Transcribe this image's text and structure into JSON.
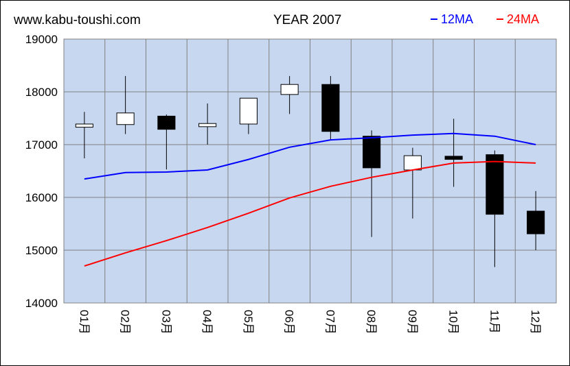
{
  "header": {
    "site": "www.kabu-toushi.com",
    "title": "YEAR 2007"
  },
  "chart_data": {
    "type": "candlestick",
    "title": "YEAR 2007",
    "ylim": [
      14000,
      19000
    ],
    "yticks": [
      14000,
      15000,
      16000,
      17000,
      18000,
      19000
    ],
    "grid": true,
    "legend_position": "top-right",
    "categories": [
      "01月",
      "02月",
      "03月",
      "04月",
      "05月",
      "06月",
      "07月",
      "08月",
      "09月",
      "10月",
      "11月",
      "12月"
    ],
    "candles": [
      {
        "open": 17330,
        "close": 17390,
        "high": 17620,
        "low": 16740
      },
      {
        "open": 17380,
        "close": 17600,
        "high": 18300,
        "low": 17200
      },
      {
        "open": 17540,
        "close": 17290,
        "high": 17570,
        "low": 16530
      },
      {
        "open": 17340,
        "close": 17400,
        "high": 17780,
        "low": 17000
      },
      {
        "open": 17390,
        "close": 17880,
        "high": 17880,
        "low": 17200
      },
      {
        "open": 17950,
        "close": 18140,
        "high": 18300,
        "low": 17580
      },
      {
        "open": 18140,
        "close": 17250,
        "high": 18300,
        "low": 17080
      },
      {
        "open": 17160,
        "close": 16560,
        "high": 17270,
        "low": 15250
      },
      {
        "open": 16520,
        "close": 16790,
        "high": 16940,
        "low": 15600
      },
      {
        "open": 16780,
        "close": 16720,
        "high": 17490,
        "low": 16200
      },
      {
        "open": 16810,
        "close": 15680,
        "high": 16890,
        "low": 14680
      },
      {
        "open": 15740,
        "close": 15310,
        "high": 16120,
        "low": 15000
      }
    ],
    "series": [
      {
        "name": "12MA",
        "color": "#0000ff",
        "values": [
          16350,
          16470,
          16480,
          16520,
          16720,
          16950,
          17090,
          17130,
          17180,
          17210,
          17160,
          17000
        ]
      },
      {
        "name": "24MA",
        "color": "#ff0000",
        "values": [
          14700,
          14950,
          15180,
          15430,
          15700,
          15990,
          16210,
          16380,
          16520,
          16650,
          16680,
          16650
        ]
      }
    ],
    "colors": {
      "plot_background": "#c6d7ef",
      "grid": "#808080",
      "up_body": "#ffffff",
      "down_body": "#000000"
    }
  }
}
